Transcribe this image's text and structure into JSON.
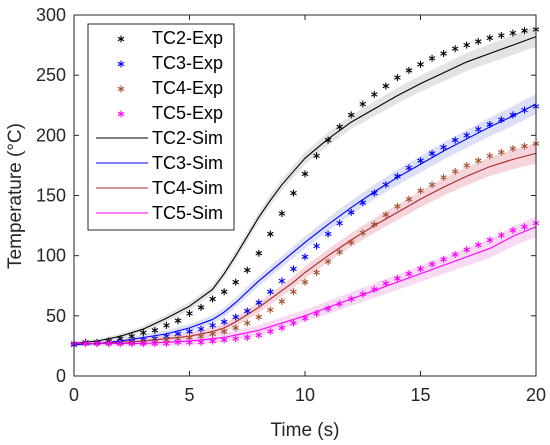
{
  "chart_data": {
    "type": "line",
    "xlabel": "Time (s)",
    "ylabel": "Temperature (°C)",
    "xlim": [
      0,
      20
    ],
    "ylim": [
      0,
      300
    ],
    "xticks": [
      0,
      5,
      10,
      15,
      20
    ],
    "yticks": [
      0,
      50,
      100,
      150,
      200,
      250,
      300
    ],
    "xtick_labels": [
      "0",
      "5",
      "10",
      "15",
      "20"
    ],
    "ytick_labels": [
      "0",
      "50",
      "100",
      "150",
      "200",
      "250",
      "300"
    ],
    "grid": false,
    "legend_position": "top-left",
    "legend": [
      "TC2-Exp",
      "TC3-Exp",
      "TC4-Exp",
      "TC5-Exp",
      "TC2-Sim",
      "TC3-Sim",
      "TC4-Sim",
      "TC5-Sim"
    ],
    "exp_time": [
      0,
      0.5,
      1,
      1.5,
      2,
      2.5,
      3,
      3.5,
      4,
      4.5,
      5,
      5.5,
      6,
      6.5,
      7,
      7.5,
      8,
      8.5,
      9,
      9.5,
      10,
      10.5,
      11,
      11.5,
      12,
      12.5,
      13,
      13.5,
      14,
      14.5,
      15,
      15.5,
      16,
      16.5,
      17,
      17.5,
      18,
      18.5,
      19,
      19.5,
      20
    ],
    "sim_time": [
      0,
      1,
      2,
      3,
      4,
      5,
      6,
      6.5,
      7,
      7.5,
      8,
      8.5,
      9,
      9.5,
      10,
      11,
      12,
      13,
      14,
      15,
      16,
      17,
      18,
      19,
      20
    ],
    "series": [
      {
        "name": "TC2-Exp",
        "kind": "exp",
        "color": "#000000",
        "values": [
          27,
          28,
          28,
          29,
          31,
          33,
          36,
          38,
          42,
          46,
          52,
          57,
          64,
          70,
          78,
          88,
          102,
          118,
          135,
          152,
          168,
          183,
          196,
          207,
          217,
          226,
          234,
          241,
          248,
          254,
          259,
          264,
          268,
          272,
          275,
          278,
          281,
          283,
          285,
          287,
          288
        ]
      },
      {
        "name": "TC3-Exp",
        "kind": "exp",
        "color": "#0000FF",
        "values": [
          26,
          27,
          27,
          27,
          28,
          29,
          30,
          31,
          33,
          35,
          37,
          39,
          42,
          45,
          49,
          54,
          61,
          70,
          79,
          89,
          99,
          108,
          118,
          127,
          136,
          144,
          152,
          159,
          166,
          173,
          179,
          185,
          190,
          196,
          200,
          205,
          209,
          213,
          217,
          221,
          224
        ]
      },
      {
        "name": "TC4-Exp",
        "kind": "exp",
        "color": "#A0522D",
        "values": [
          27,
          27,
          27,
          27,
          27,
          28,
          28,
          29,
          30,
          31,
          32,
          33,
          35,
          37,
          40,
          44,
          49,
          55,
          62,
          70,
          78,
          86,
          95,
          103,
          111,
          119,
          126,
          134,
          141,
          147,
          154,
          159,
          165,
          170,
          175,
          179,
          183,
          186,
          189,
          191,
          193
        ]
      },
      {
        "name": "TC5-Exp",
        "kind": "exp",
        "color": "#FF00FF",
        "values": [
          27,
          27,
          27,
          27,
          27,
          27,
          27,
          27,
          27,
          28,
          28,
          28,
          29,
          30,
          31,
          32,
          34,
          37,
          40,
          44,
          48,
          52,
          56,
          60,
          64,
          68,
          72,
          77,
          81,
          85,
          89,
          93,
          97,
          101,
          105,
          109,
          113,
          117,
          121,
          124,
          127
        ]
      },
      {
        "name": "TC2-Sim",
        "kind": "sim",
        "color": "#000000",
        "band": "#d9d9d9",
        "values": [
          27,
          29,
          33,
          39,
          48,
          58,
          72,
          85,
          100,
          116,
          132,
          146,
          159,
          170,
          181,
          197,
          211,
          222,
          233,
          243,
          252,
          261,
          268,
          275,
          282
        ]
      },
      {
        "name": "TC3-Sim",
        "kind": "sim",
        "color": "#0000FF",
        "band": "#cfd6f5",
        "values": [
          26,
          27,
          29,
          32,
          35,
          40,
          47,
          53,
          61,
          70,
          79,
          87,
          95,
          103,
          111,
          126,
          140,
          153,
          165,
          176,
          187,
          197,
          207,
          216,
          226
        ]
      },
      {
        "name": "TC4-Sim",
        "kind": "sim",
        "color": "#A52A2A",
        "band": "#f2c6cf",
        "values": [
          27,
          27,
          28,
          29,
          31,
          33,
          37,
          40,
          45,
          51,
          57,
          64,
          71,
          78,
          86,
          100,
          113,
          125,
          136,
          147,
          157,
          166,
          174,
          180,
          185
        ]
      },
      {
        "name": "TC5-Sim",
        "kind": "sim",
        "color": "#FF00FF",
        "band": "#f7cdf0",
        "values": [
          27,
          27,
          27,
          27,
          28,
          29,
          31,
          32,
          34,
          36,
          38,
          41,
          44,
          47,
          50,
          57,
          64,
          71,
          78,
          85,
          92,
          99,
          106,
          116,
          124
        ]
      }
    ]
  }
}
